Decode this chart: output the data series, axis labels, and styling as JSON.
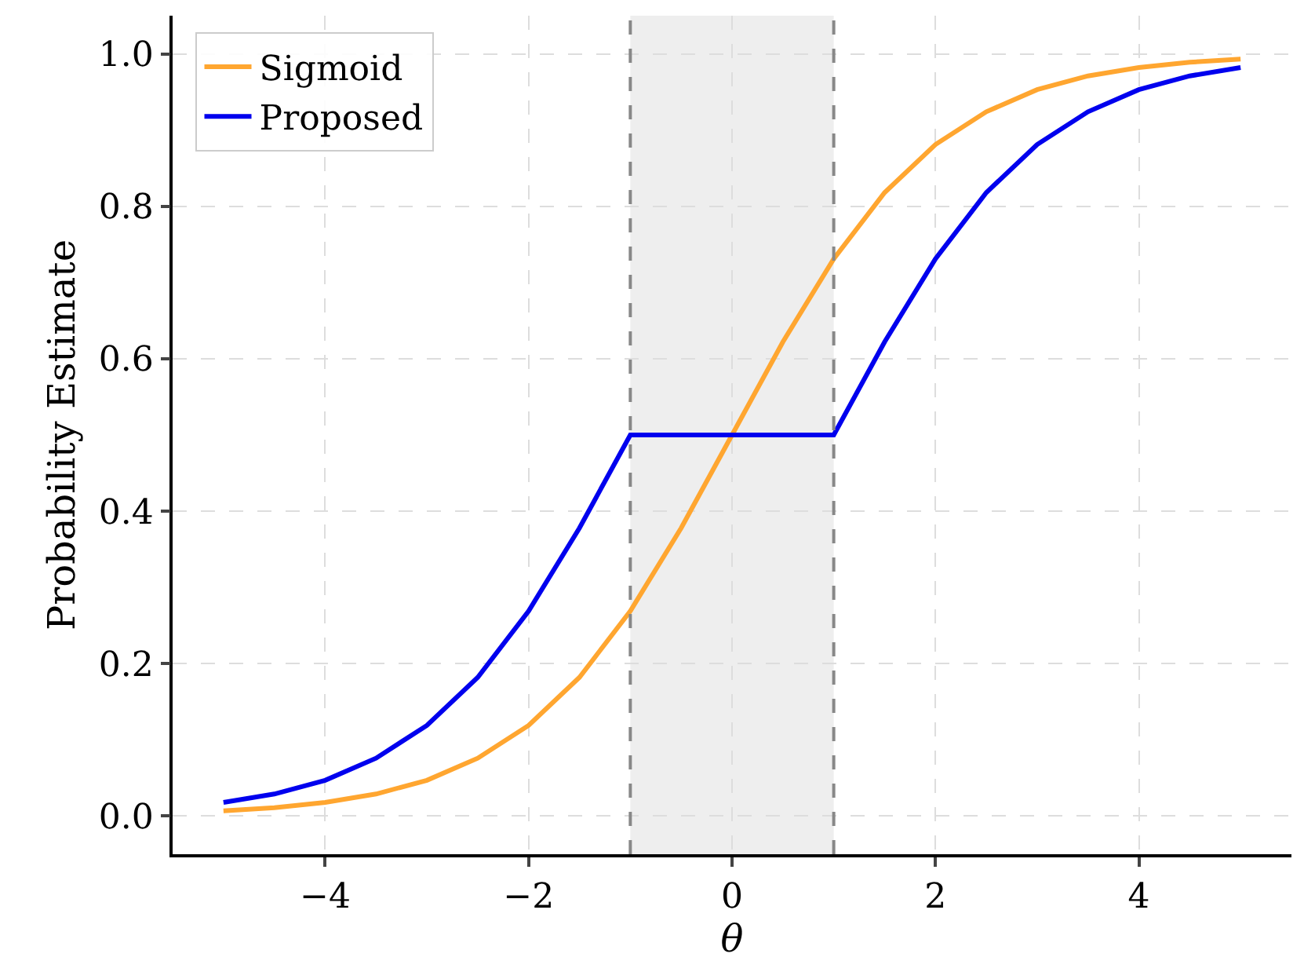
{
  "chart_data": {
    "type": "line",
    "xlabel": "θ",
    "ylabel": "Probability Estimate",
    "xlim": [
      -5.5,
      5.5
    ],
    "ylim": [
      -0.05,
      1.05
    ],
    "xticks": [
      {
        "value": -4,
        "label": "−4"
      },
      {
        "value": -2,
        "label": "−2"
      },
      0,
      2,
      4
    ],
    "yticks": [
      {
        "value": 0,
        "label": "0.0"
      },
      {
        "value": 0.2,
        "label": "0.2"
      },
      {
        "value": 0.4,
        "label": "0.4"
      },
      {
        "value": 0.6,
        "label": "0.6"
      },
      {
        "value": 0.8,
        "label": "0.8"
      },
      {
        "value": 1,
        "label": "1.0"
      }
    ],
    "grid": true,
    "legend": "top left",
    "line_style": "solid",
    "marker": "none",
    "series": [
      {
        "name": "Sigmoid",
        "color": "#ffa630",
        "x": [
          -5,
          -4.5,
          -4,
          -3.5,
          -3,
          -2.5,
          -2,
          -1.5,
          -1,
          -0.5,
          0,
          0.5,
          1,
          1.5,
          2,
          2.5,
          3,
          3.5,
          4,
          4.5,
          5
        ],
        "values": [
          0.007,
          0.011,
          0.018,
          0.029,
          0.047,
          0.076,
          0.119,
          0.182,
          0.269,
          0.378,
          0.5,
          0.622,
          0.731,
          0.818,
          0.881,
          0.924,
          0.953,
          0.971,
          0.982,
          0.989,
          0.993
        ]
      },
      {
        "name": "Proposed",
        "color": "#0000ee",
        "x": [
          -5,
          -4.5,
          -4,
          -3.5,
          -3,
          -2.5,
          -2,
          -1.5,
          -1,
          0,
          1,
          1.5,
          2,
          2.5,
          3,
          3.5,
          4,
          4.5,
          5
        ],
        "values": [
          0.018,
          0.029,
          0.047,
          0.076,
          0.119,
          0.182,
          0.269,
          0.378,
          0.5,
          0.5,
          0.5,
          0.622,
          0.731,
          0.818,
          0.881,
          0.924,
          0.953,
          0.971,
          0.982
        ]
      }
    ],
    "bands": [
      {
        "axis": "x",
        "from": -1,
        "to": 1,
        "color": "#eeeeee"
      }
    ],
    "ref_lines": [
      {
        "axis": "x",
        "value": -1,
        "color": "#888888",
        "line_style": "dashed"
      },
      {
        "axis": "x",
        "value": 1,
        "color": "#888888",
        "line_style": "dashed"
      }
    ]
  }
}
